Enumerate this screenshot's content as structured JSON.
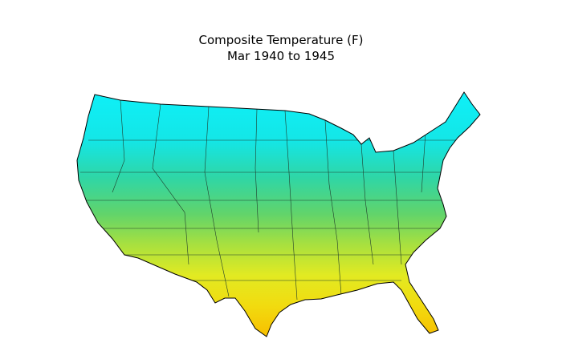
{
  "header": {
    "title": "Composite Temperature (F)",
    "subtitle": "Mar 1940 to 1945"
  }
}
